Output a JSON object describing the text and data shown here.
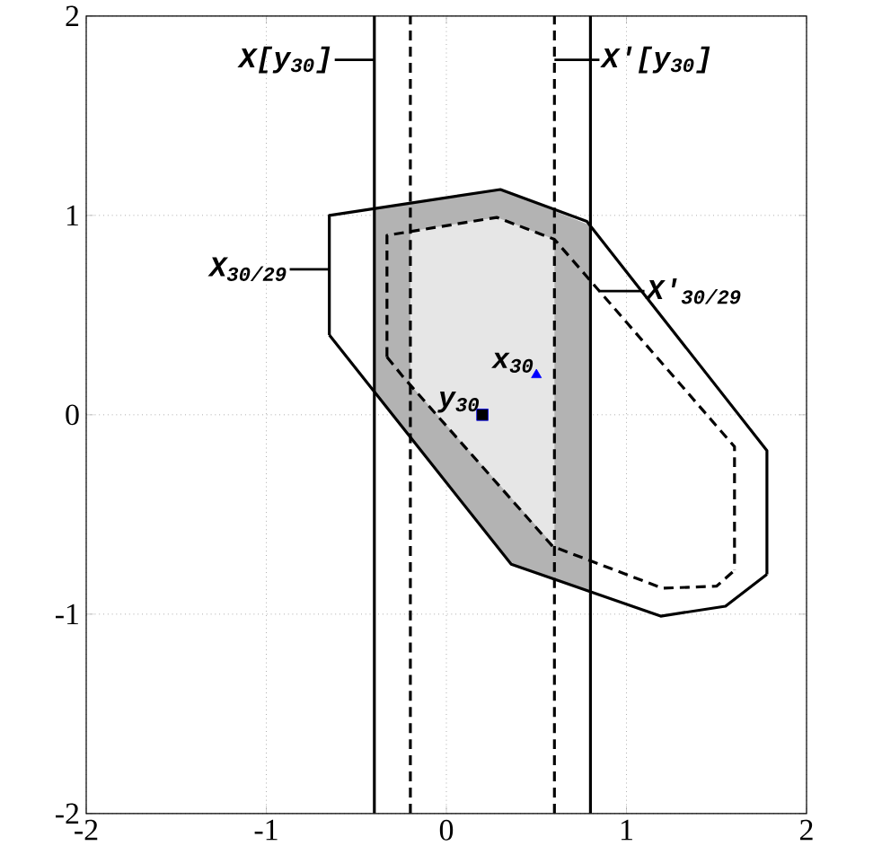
{
  "chart_data": {
    "type": "line",
    "xlim": [
      -2,
      2
    ],
    "ylim": [
      -2,
      2
    ],
    "xticks": [
      -2,
      -1,
      0,
      1,
      2
    ],
    "yticks": [
      -2,
      -1,
      0,
      1,
      2
    ],
    "grid": true,
    "series": [
      {
        "type": "area",
        "color": "#b3b3b3",
        "x": [
          -0.4,
          0.3,
          0.8,
          0.8,
          0.36,
          -0.4
        ],
        "values": [
          1.03,
          1.13,
          0.95,
          -0.89,
          -0.75,
          0.12
        ]
      },
      {
        "type": "area",
        "color": "#e6e6e6",
        "x": [
          -0.2,
          0.28,
          0.6,
          0.6,
          -0.2
        ],
        "values": [
          0.92,
          0.99,
          0.88,
          -0.66,
          0.15
        ]
      },
      {
        "color": "#000000",
        "line_style": "solid",
        "x": [
          -0.65,
          -0.65,
          0.3,
          0.78,
          1.78,
          1.78
        ],
        "values": [
          0.4,
          1.0,
          1.13,
          0.97,
          -0.18,
          -0.8
        ]
      },
      {
        "color": "#000000",
        "line_style": "solid",
        "x": [
          -0.65,
          0.36,
          1.19,
          1.55,
          1.78
        ],
        "values": [
          0.4,
          -0.75,
          -1.01,
          -0.96,
          -0.8
        ]
      },
      {
        "color": "#000000",
        "line_style": "dashed",
        "x": [
          -0.33,
          -0.33,
          0.28,
          0.6,
          1.6,
          1.6
        ],
        "values": [
          0.29,
          0.9,
          0.99,
          0.88,
          -0.16,
          -0.78
        ]
      },
      {
        "color": "#000000",
        "line_style": "dashed",
        "x": [
          -0.33,
          -0.24,
          0.59,
          1.2,
          1.5,
          1.6
        ],
        "values": [
          0.29,
          0.19,
          -0.66,
          -0.87,
          -0.86,
          -0.78
        ]
      },
      {
        "type": "scatter",
        "name": "y$_{30}$",
        "color": "#000000",
        "marker": "square",
        "x": [
          0.2
        ],
        "values": [
          0.0
        ]
      },
      {
        "type": "scatter",
        "name": "x$_{30}$",
        "color": "#0000ff",
        "marker": "triangle",
        "x": [
          0.5
        ],
        "values": [
          0.2
        ]
      }
    ],
    "ref_lines": [
      {
        "axis": "x",
        "value": -0.4,
        "line_style": "solid",
        "color": "#000000"
      },
      {
        "axis": "x",
        "value": 0.8,
        "line_style": "solid",
        "color": "#000000"
      },
      {
        "axis": "x",
        "value": -0.2,
        "line_style": "dashed",
        "color": "#000000"
      },
      {
        "axis": "x",
        "value": 0.6,
        "line_style": "dashed",
        "color": "#000000"
      }
    ],
    "annotations": [
      {
        "text": "X[y$_{30}$]",
        "x": -0.4,
        "y": 1.78
      },
      {
        "text": "X′[y$_{30}$]",
        "x": 0.6,
        "y": 1.78
      },
      {
        "text": "X$_{30/29}$",
        "x": -0.65,
        "y": 0.73
      },
      {
        "text": "X′$_{30/29}$",
        "x": 0.85,
        "y": 0.62
      }
    ]
  }
}
